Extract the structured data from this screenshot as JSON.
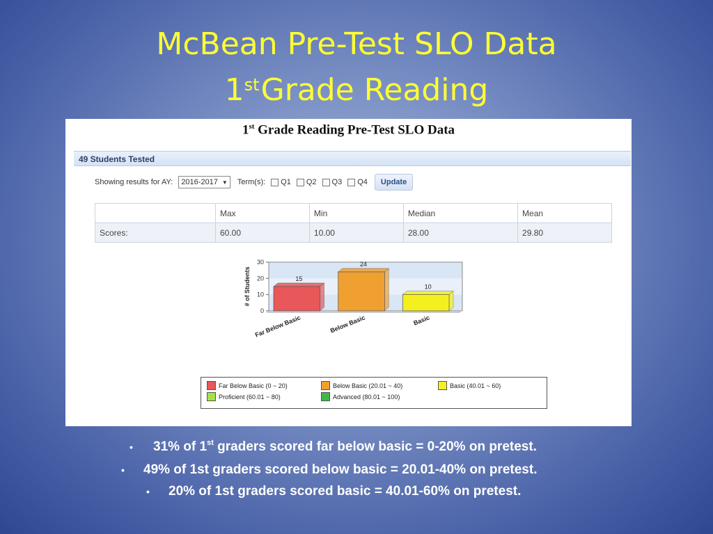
{
  "slide": {
    "title_line1": "McBean Pre-Test SLO Data",
    "title_line2_num": "1",
    "title_line2_sup": "st",
    "title_line2_rest": "Grade Reading"
  },
  "screenshot": {
    "heading_num": "1",
    "heading_sup": "st",
    "heading_rest": " Grade Reading Pre-Test SLO Data",
    "tested_label": "49 Students Tested",
    "filter_label": "Showing results for AY:",
    "ay_value": "2016-2017",
    "terms_label": "Term(s):",
    "terms": [
      "Q1",
      "Q2",
      "Q3",
      "Q4"
    ],
    "update_label": "Update",
    "stats_headers": [
      "",
      "Max",
      "Min",
      "Median",
      "Mean"
    ],
    "stats_row": [
      "Scores:",
      "60.00",
      "10.00",
      "28.00",
      "29.80"
    ]
  },
  "chart_data": {
    "type": "bar",
    "categories": [
      "Far Below Basic",
      "Below Basic",
      "Basic"
    ],
    "values": [
      15,
      24,
      10
    ],
    "ylabel": "# of Students",
    "ylim": [
      0,
      30
    ],
    "yticks": [
      "0",
      "10",
      "20",
      "30"
    ],
    "colors": [
      "#e8585a",
      "#f0a030",
      "#f4f020"
    ]
  },
  "legend": [
    {
      "label": "Far Below Basic (0 ~ 20)",
      "color": "#e8585a"
    },
    {
      "label": "Below Basic (20.01 ~ 40)",
      "color": "#f0a030"
    },
    {
      "label": "Basic (40.01 ~ 60)",
      "color": "#f4f020"
    },
    {
      "label": "Proficient (60.01 ~ 80)",
      "color": "#a6e04a"
    },
    {
      "label": "Advanced (80.01 ~ 100)",
      "color": "#3fb84a"
    }
  ],
  "bullets": {
    "b1_pre": "31% of 1",
    "b1_sup": "st",
    "b1_post": " graders scored far below basic = 0-20% on pretest.",
    "b2": "49% of 1st graders  scored  below basic = 20.01-40% on pretest.",
    "b3": "20%  of 1st graders  scored basic = 40.01-60% on pretest."
  }
}
